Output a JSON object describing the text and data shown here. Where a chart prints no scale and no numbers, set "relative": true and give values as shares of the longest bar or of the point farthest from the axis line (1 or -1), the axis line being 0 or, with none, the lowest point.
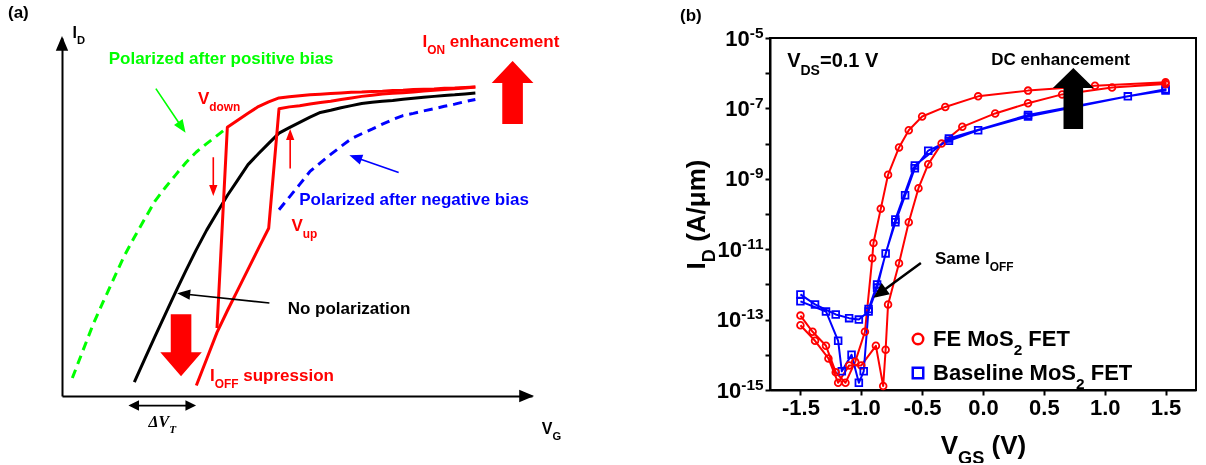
{
  "chart_data": [
    {
      "type": "line",
      "title": "(a)",
      "xlabel": "V$_{G}$",
      "ylabel": "I$_{D}$",
      "relative": true,
      "grid": false,
      "categories": [
        null,
        null,
        null,
        null,
        null,
        null,
        null,
        null,
        null,
        null,
        null,
        null,
        null,
        null,
        null,
        null,
        null,
        null,
        null,
        null,
        null,
        null,
        null,
        null,
        null,
        null,
        null,
        null,
        null,
        null,
        null,
        null,
        null,
        null,
        null,
        null,
        null,
        null,
        null,
        null,
        null
      ],
      "annotations": [
        "V$_{down}$",
        "V$_{up}$",
        "I$_{ON}$ enhancement",
        "I$_{OFF}$ supression",
        "ΔV$_{T}$"
      ],
      "series": [
        {
          "name": "Polarized after positive bias",
          "color": "#00ff00",
          "line_style": "dashed",
          "values": [
            null,
            0.058,
            0.145,
            0.231,
            0.306,
            0.379,
            0.452,
            0.514,
            0.573,
            0.631,
            0.675,
            0.716,
            0.756,
            0.79,
            0.817,
            0.843,
            0.869,
            null,
            null,
            null,
            null,
            null,
            null,
            null,
            null,
            null,
            null,
            null,
            null,
            null,
            null,
            null,
            null,
            null,
            null,
            null,
            null,
            null,
            null,
            null,
            null
          ]
        },
        {
          "name": "No polarization",
          "color": "#000000",
          "line_style": "solid",
          "values": [
            null,
            null,
            null,
            null,
            null,
            null,
            null,
            0.045,
            0.119,
            0.193,
            0.265,
            0.337,
            0.407,
            0.474,
            0.537,
            0.593,
            0.649,
            0.699,
            0.749,
            0.784,
            0.818,
            0.851,
            0.869,
            0.886,
            0.903,
            0.918,
            0.925,
            0.933,
            0.94,
            0.947,
            0.951,
            0.954,
            0.957,
            0.961,
            0.964,
            0.967,
            0.97,
            0.973,
            0.975,
            0.978,
            0.981
          ]
        },
        {
          "name": "Polarized after negative bias",
          "color": "#0000ff",
          "line_style": "dashed",
          "values": [
            null,
            null,
            null,
            null,
            null,
            null,
            null,
            null,
            null,
            null,
            null,
            null,
            null,
            null,
            null,
            null,
            null,
            null,
            null,
            null,
            null,
            0.603,
            0.644,
            0.685,
            0.727,
            0.755,
            0.782,
            0.808,
            0.833,
            0.849,
            0.864,
            0.88,
            0.895,
            0.908,
            0.915,
            0.923,
            0.93,
            0.938,
            0.945,
            0.953,
            0.96
          ]
        },
        {
          "color": "#ff0000",
          "line_style": "solid",
          "values": [
            null,
            null,
            null,
            null,
            null,
            null,
            null,
            null,
            null,
            null,
            null,
            null,
            null,
            0.034,
            0.12,
            0.206,
            0.276,
            0.343,
            0.41,
            0.477,
            0.543,
            0.93,
            0.936,
            0.94,
            0.945,
            0.95,
            0.954,
            0.96,
            0.965,
            0.97,
            0.974,
            0.978,
            0.98,
            0.982,
            0.984,
            0.987,
            0.99,
            0.992,
            0.995,
            0.997,
            1.0
          ]
        },
        {
          "color": "#ff0000",
          "line_style": "solid",
          "values": [
            null,
            null,
            null,
            null,
            null,
            null,
            null,
            null,
            null,
            null,
            null,
            null,
            null,
            null,
            null,
            0.22,
            0.87,
            0.893,
            0.915,
            0.937,
            0.952,
            0.965,
            0.969,
            0.972,
            0.975,
            0.977,
            0.979,
            0.981,
            0.983,
            0.984,
            0.986,
            0.987,
            0.989,
            0.99,
            0.992,
            0.993,
            0.994,
            0.996,
            0.997,
            0.999,
            1.0
          ]
        }
      ]
    },
    {
      "type": "line",
      "title": "(b)",
      "xlabel": "V$_{GS}$ (V)",
      "ylabel": "I$_{D}$ (A/μm)",
      "log": "y",
      "legend": "bottom right",
      "grid": false,
      "xlim": [
        -1.75,
        1.75
      ],
      "xticks": [
        -1.5,
        {
          "value": -1,
          "label": "-1.0"
        },
        -0.5,
        {
          "value": 0,
          "label": "0.0"
        },
        0.5,
        {
          "value": 1,
          "label": "1.0"
        },
        1.5
      ],
      "ylim": [
        1e-15,
        1e-05
      ],
      "yticks": [
        {
          "value": 1e-15,
          "label": "10$^{-15}$"
        },
        {
          "value": 1e-14,
          "label": null
        },
        {
          "value": 1e-13,
          "label": "10$^{-13}$"
        },
        {
          "value": 1e-12,
          "label": null
        },
        {
          "value": 1e-11,
          "label": "10$^{-11}$"
        },
        {
          "value": 1e-10,
          "label": null
        },
        {
          "value": 1e-09,
          "label": "10$^{-9}$"
        },
        {
          "value": 1e-08,
          "label": null
        },
        {
          "value": 1e-07,
          "label": "10$^{-7}$"
        },
        {
          "value": 1e-06,
          "label": null
        },
        {
          "value": 1e-05,
          "label": "10$^{-5}$"
        }
      ],
      "annotations": [
        "V$_{DS}$=0.1 V",
        "DC enhancement",
        {
          "text": "Same I$_{OFF}$",
          "x": -0.88,
          "y": 4.7e-13
        }
      ],
      "series": [
        {
          "name": "FE MoS$_{2}$ FET",
          "color": "#ff0000",
          "marker": "circle",
          "x": [
            -1.5,
            -1.38,
            -1.27,
            -1.19,
            -1.1,
            -1.0,
            -0.88,
            -0.82,
            -0.8,
            -0.78,
            -0.69,
            -0.61,
            -0.53,
            -0.45,
            -0.34,
            -0.17,
            0.1,
            0.37,
            0.65,
            1.06,
            1.5,
            1.5,
            0.92,
            0.37,
            -0.04,
            -0.31,
            -0.5,
            -0.61,
            -0.69,
            -0.78,
            -0.84,
            -0.9,
            -0.91,
            -0.97,
            -1.05,
            -1.13,
            -1.21,
            -1.29,
            -1.4,
            -1.5
          ],
          "values": [
            6.9e-14,
            2.5e-14,
            7.9e-15,
            1.6e-15,
            5e-15,
            5e-15,
            1.8e-14,
            1.3e-15,
            1.4e-14,
            2.7e-13,
            4e-12,
            5.8e-11,
            5.4e-10,
            2.6e-09,
            1e-08,
            3e-08,
            7.2e-08,
            1.4e-07,
            2.5e-07,
            3.9e-07,
            4.9e-07,
            5.5e-07,
            4.4e-07,
            3.2e-07,
            2.2e-07,
            1.1e-07,
            5.9e-08,
            2.4e-08,
            7.8e-09,
            1.3e-09,
            1.4e-10,
            1.5e-11,
            5.5e-12,
            4.5e-14,
            6.3e-15,
            1.6e-15,
            3.2e-15,
            1.8e-14,
            4.5e-14,
            1.3e-13
          ]
        },
        {
          "name": "Baseline MoS$_{2}$ FET",
          "color": "#0000ff",
          "marker": "square",
          "x": [
            -1.5,
            -1.38,
            -1.21,
            -1.1,
            -1.02,
            -0.94,
            -0.87,
            -0.8,
            -0.72,
            -0.64,
            -0.56,
            -0.45,
            -0.28,
            -0.04,
            0.37,
            1.19,
            1.5,
            1.5,
            0.37,
            -0.28,
            -0.56,
            -0.72,
            -0.87,
            -0.94,
            -0.98,
            -1.02,
            -1.08,
            -1.16,
            -1.19,
            -1.29,
            -1.5
          ],
          "values": [
            5.2e-13,
            2.7e-13,
            1.4e-13,
            1.1e-13,
            1e-13,
            1.7e-13,
            8.1e-13,
            7.6e-12,
            5.8e-11,
            3.4e-10,
            2e-09,
            6.3e-09,
            1.2e-08,
            2.4e-08,
            5.9e-08,
            2.2e-07,
            3.2e-07,
            3.5e-07,
            6.5e-08,
            1.4e-08,
            2.4e-09,
            7e-11,
            1e-12,
            2e-13,
            3.4e-15,
            1.6e-15,
            1e-14,
            3.4e-15,
            2.5e-14,
            1.7e-13,
            3.3e-13
          ]
        }
      ]
    }
  ]
}
